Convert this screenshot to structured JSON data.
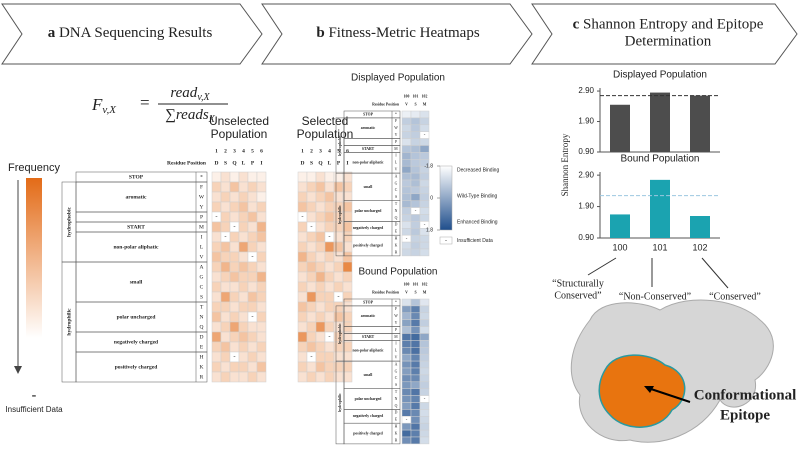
{
  "header": {
    "panels": [
      {
        "letter": "a",
        "title_lines": [
          "DNA Sequencing Results"
        ]
      },
      {
        "letter": "b",
        "title_lines": [
          "Fitness-Metric Heatmaps"
        ]
      },
      {
        "letter": "c",
        "title_lines": [
          "Shannon Entropy and Epitope",
          "Determination"
        ]
      }
    ]
  },
  "residue_table": {
    "header": "Residue Position",
    "stop": {
      "label": "STOP",
      "residues": [
        "*"
      ]
    },
    "classes": [
      {
        "label": "hydrophobic",
        "groups": [
          {
            "label": "aromatic",
            "residues": [
              "F",
              "W",
              "Y"
            ]
          },
          {
            "label": null,
            "residues": [
              "P"
            ]
          },
          {
            "label": "START",
            "residues": [
              "M"
            ]
          },
          {
            "label": "non-polar aliphatic",
            "residues": [
              "I",
              "L",
              "V"
            ]
          }
        ]
      },
      {
        "label": "hydrophilic",
        "groups": [
          {
            "label": "small",
            "residues": [
              "A",
              "G",
              "C",
              "S"
            ]
          },
          {
            "label": "polar uncharged",
            "residues": [
              "T",
              "N",
              "Q"
            ]
          },
          {
            "label": "negatively charged",
            "residues": [
              "D",
              "E"
            ]
          },
          {
            "label": "positively charged",
            "residues": [
              "H",
              "K",
              "R"
            ]
          }
        ]
      }
    ]
  },
  "panel_a": {
    "equation": {
      "lhs": "F",
      "lhs_sub": "v,X",
      "equals": "=",
      "numerator": "read",
      "numerator_sub": "v,X",
      "denominator": "∑reads",
      "denominator_sub": "X"
    },
    "frequency_label": "Frequency",
    "insufficient_symbol": "-",
    "insufficient_label": "Insufficient Data",
    "color_range": [
      0,
      1
    ],
    "heatmaps": [
      {
        "title_lines": [
          "Unselected",
          "Population"
        ],
        "positions": [
          1,
          2,
          3,
          4,
          5,
          6
        ],
        "wild_type": [
          "D",
          "S",
          "Q",
          "L",
          "P",
          "I"
        ],
        "cells": [
          [
            0.1,
            0.2,
            0.1,
            0.2,
            0.1,
            0.1
          ],
          [
            0.3,
            0.2,
            0.4,
            0.2,
            0.3,
            0.2
          ],
          [
            0.2,
            0.3,
            0.2,
            0.3,
            0.2,
            0.1
          ],
          [
            0.3,
            0.2,
            0.3,
            0.4,
            0.2,
            0.3
          ],
          [
            null,
            0.3,
            0.2,
            0.3,
            0.4,
            0.2
          ],
          [
            0.4,
            0.3,
            null,
            0.3,
            0.2,
            0.5
          ],
          [
            0.2,
            null,
            0.3,
            0.2,
            0.3,
            0.4
          ],
          [
            0.3,
            0.4,
            0.2,
            0.6,
            0.3,
            0.2
          ],
          [
            0.4,
            0.3,
            0.3,
            0.2,
            null,
            0.3
          ],
          [
            0.3,
            0.5,
            0.3,
            0.4,
            0.3,
            0.2
          ],
          [
            0.2,
            0.3,
            0.4,
            0.3,
            0.3,
            0.5
          ],
          [
            0.3,
            0.2,
            0.2,
            0.3,
            0.2,
            0.3
          ],
          [
            0.2,
            0.6,
            0.3,
            0.2,
            0.4,
            0.3
          ],
          [
            0.3,
            0.3,
            0.2,
            0.3,
            0.3,
            0.2
          ],
          [
            0.4,
            0.2,
            0.3,
            0.2,
            null,
            0.3
          ],
          [
            0.2,
            0.3,
            0.6,
            0.3,
            0.2,
            0.2
          ],
          [
            0.6,
            0.2,
            0.3,
            0.4,
            0.3,
            0.2
          ],
          [
            0.3,
            0.4,
            0.2,
            0.3,
            0.2,
            0.3
          ],
          [
            0.2,
            0.3,
            null,
            0.2,
            0.3,
            0.2
          ],
          [
            0.3,
            0.2,
            0.3,
            0.3,
            0.2,
            0.4
          ],
          [
            0.2,
            0.3,
            0.2,
            0.2,
            0.3,
            0.2
          ]
        ]
      },
      {
        "title_lines": [
          "Selected",
          "Population"
        ],
        "positions": [
          1,
          2,
          3,
          4,
          5,
          6
        ],
        "wild_type": [
          "D",
          "S",
          "Q",
          "L",
          "P",
          "I"
        ],
        "cells": [
          [
            0.1,
            0.1,
            0.2,
            0.1,
            0.1,
            0.2
          ],
          [
            0.2,
            0.3,
            0.4,
            0.2,
            0.4,
            0.3
          ],
          [
            0.3,
            0.2,
            0.3,
            0.4,
            0.2,
            0.2
          ],
          [
            0.4,
            0.3,
            0.2,
            0.3,
            0.3,
            0.4
          ],
          [
            null,
            0.2,
            0.3,
            0.4,
            0.3,
            0.3
          ],
          [
            0.3,
            null,
            0.2,
            0.3,
            0.3,
            0.4
          ],
          [
            0.2,
            0.3,
            0.4,
            null,
            0.2,
            0.3
          ],
          [
            0.3,
            0.2,
            0.3,
            0.7,
            0.4,
            0.2
          ],
          [
            0.5,
            0.3,
            0.2,
            0.3,
            0.2,
            0.4
          ],
          [
            0.3,
            0.4,
            0.3,
            0.2,
            0.3,
            0.8
          ],
          [
            0.2,
            0.3,
            0.5,
            0.3,
            0.2,
            0.3
          ],
          [
            0.3,
            0.2,
            0.3,
            0.2,
            0.3,
            0.2
          ],
          [
            0.2,
            0.7,
            0.3,
            0.3,
            null,
            0.3
          ],
          [
            0.4,
            0.3,
            0.2,
            0.3,
            0.3,
            0.2
          ],
          [
            0.3,
            0.2,
            0.3,
            0.2,
            0.4,
            0.3
          ],
          [
            0.2,
            0.3,
            0.7,
            0.3,
            0.2,
            0.3
          ],
          [
            0.7,
            0.3,
            0.2,
            null,
            0.3,
            0.2
          ],
          [
            0.3,
            0.4,
            0.3,
            0.2,
            0.3,
            0.3
          ],
          [
            0.2,
            null,
            0.3,
            0.3,
            0.2,
            0.2
          ],
          [
            0.3,
            0.2,
            0.4,
            0.3,
            0.3,
            0.3
          ],
          [
            0.2,
            0.3,
            0.2,
            0.3,
            0.2,
            0.2
          ]
        ]
      }
    ]
  },
  "panel_b": {
    "color_range": [
      -1.8,
      1.8
    ],
    "legend": {
      "ticks": [
        -1.8,
        0,
        1.8
      ],
      "labels": [
        "Decreased Binding",
        "Wild-Type Binding",
        "Enhanced Binding"
      ],
      "insufficient_symbol": "-",
      "insufficient_label": "Insufficient Data"
    },
    "heatmaps": [
      {
        "title": "Displayed Population",
        "positions": [
          100,
          101,
          102
        ],
        "wild_type": [
          "V",
          "S",
          "M"
        ],
        "cells": [
          [
            -1.5,
            -1.4,
            -1.2
          ],
          [
            -0.8,
            -0.6,
            -0.9
          ],
          [
            -1.0,
            -0.7,
            -1.1
          ],
          [
            -0.9,
            -0.8,
            null
          ],
          [
            -1.2,
            -0.9,
            -1.0
          ],
          [
            -0.6,
            -0.5,
            0
          ],
          [
            -0.3,
            -0.6,
            -0.7
          ],
          [
            -0.4,
            -0.7,
            -0.8
          ],
          [
            0,
            -0.6,
            -0.9
          ],
          [
            -0.5,
            -0.4,
            -0.8
          ],
          [
            -0.7,
            -0.5,
            -1.0
          ],
          [
            -0.6,
            -0.7,
            -0.9
          ],
          [
            -0.5,
            0,
            -0.8
          ],
          [
            -0.4,
            -0.6,
            -0.9
          ],
          [
            -0.8,
            null,
            -1.1
          ],
          [
            -0.9,
            -0.7,
            -1.0
          ],
          [
            -1.2,
            -0.8,
            null
          ],
          [
            -1.0,
            -0.7,
            -1.2
          ],
          [
            null,
            -0.9,
            -1.0
          ],
          [
            -1.1,
            -0.8,
            -1.0
          ],
          [
            -1.0,
            -0.9,
            -1.1
          ]
        ]
      },
      {
        "title": "Bound Population",
        "positions": [
          100,
          101,
          102
        ],
        "wild_type": [
          "V",
          "S",
          "M"
        ],
        "cells": [
          [
            -1.2,
            -0.6,
            -1.3
          ],
          [
            0.2,
            0.8,
            -0.9
          ],
          [
            -0.3,
            0.6,
            -1.0
          ],
          [
            0.1,
            0.9,
            -0.8
          ],
          [
            -0.5,
            0.4,
            -1.1
          ],
          [
            1.0,
            1.2,
            0
          ],
          [
            0.8,
            1.0,
            -0.6
          ],
          [
            0.6,
            1.1,
            -0.7
          ],
          [
            0,
            0.7,
            -0.8
          ],
          [
            0.4,
            0.9,
            -0.9
          ],
          [
            0.2,
            0.8,
            -1.0
          ],
          [
            0.5,
            0.6,
            -0.9
          ],
          [
            0.3,
            0,
            -0.8
          ],
          [
            0.6,
            1.0,
            -0.9
          ],
          [
            0.4,
            0.7,
            null
          ],
          [
            0.2,
            0.9,
            -1.0
          ],
          [
            0.9,
            0.6,
            -1.1
          ],
          [
            null,
            0.5,
            -1.0
          ],
          [
            0.3,
            1.0,
            -0.9
          ],
          [
            1.2,
            0.8,
            -1.0
          ],
          [
            0.5,
            0.9,
            -1.1
          ]
        ]
      }
    ]
  },
  "panel_c": {
    "y_label": "Shannon Entropy",
    "categories": [
      100,
      101,
      102
    ],
    "charts": [
      {
        "type": "bar",
        "title": "Displayed Population",
        "values": [
          2.45,
          2.85,
          2.75
        ],
        "color": "#4d4d4d",
        "reference": 2.75,
        "reference_color": "#333333",
        "ylim": [
          0.9,
          3.0
        ],
        "yticks": [
          {
            "value": 0.9,
            "label": "0.90"
          },
          {
            "value": 1.9,
            "label": "1.90"
          },
          {
            "value": 2.9,
            "label": "2.90"
          }
        ]
      },
      {
        "type": "bar",
        "title": "Bound Population",
        "values": [
          1.65,
          2.75,
          1.6
        ],
        "color": "#1ba3b0",
        "reference": 2.25,
        "reference_color": "#9cc8e0",
        "ylim": [
          0.9,
          3.0
        ],
        "yticks": [
          {
            "value": 0.9,
            "label": "0.90"
          },
          {
            "value": 1.9,
            "label": "1.90"
          },
          {
            "value": 2.9,
            "label": "2.90"
          }
        ]
      }
    ],
    "annotations": [
      {
        "lines": [
          "“Structurally",
          "Conserved”"
        ]
      },
      {
        "lines": [
          "“Non-Conserved”"
        ]
      },
      {
        "lines": [
          "“Conserved”"
        ]
      }
    ],
    "epitope_lines": [
      "Conformational",
      "Epitope"
    ]
  }
}
